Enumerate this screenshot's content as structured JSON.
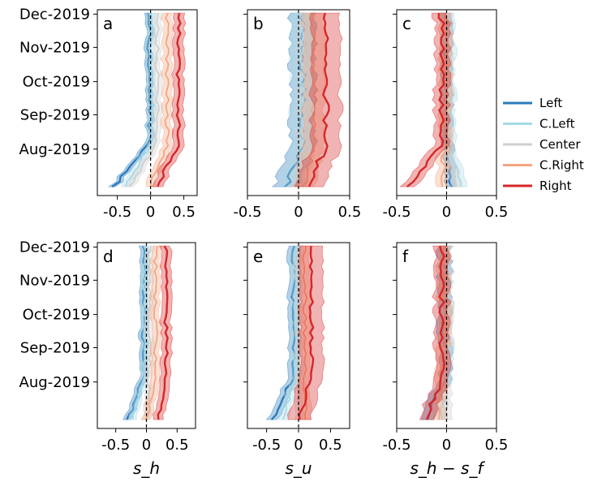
{
  "legend": {
    "position": "right",
    "entries": [
      {
        "label": "Left",
        "color": "#2b7bba"
      },
      {
        "label": "C.Left",
        "color": "#a6d9e6"
      },
      {
        "label": "Center",
        "color": "#cfcfcf"
      },
      {
        "label": "C.Right",
        "color": "#f4a582"
      },
      {
        "label": "Right",
        "color": "#d62728"
      }
    ]
  },
  "chart_data": [
    {
      "type": "line",
      "panel": "a",
      "xlim": [
        -0.8,
        0.7
      ],
      "xticks": [
        "-0.5",
        "0",
        "0.5"
      ],
      "xtick_values": [
        -0.5,
        0,
        0.5
      ],
      "xlabel": "",
      "ylim": [
        "2019-06-20",
        "2019-12-05"
      ],
      "yticks": [
        "Dec-2019",
        "Nov-2019",
        "Oct-2019",
        "Sep-2019",
        "Aug-2019"
      ],
      "ytick_values": [
        "2019-12-01",
        "2019-11-01",
        "2019-10-01",
        "2019-09-01",
        "2019-08-01"
      ],
      "series": [
        {
          "name": "Left",
          "start": -0.55,
          "mean": -0.02,
          "band": 0.05
        },
        {
          "name": "C.Left",
          "start": -0.4,
          "mean": 0.02,
          "band": 0.06
        },
        {
          "name": "Center",
          "start": -0.3,
          "mean": 0.1,
          "band": 0.06
        },
        {
          "name": "C.Right",
          "start": 0.0,
          "mean": 0.25,
          "band": 0.07
        },
        {
          "name": "Right",
          "start": 0.1,
          "mean": 0.42,
          "band": 0.08
        }
      ]
    },
    {
      "type": "line",
      "panel": "b",
      "xlim": [
        -0.5,
        0.5
      ],
      "xticks": [
        "-0.5",
        "0",
        "0.5"
      ],
      "xtick_values": [
        -0.5,
        0,
        0.5
      ],
      "xlabel": "",
      "ylim": [
        "2019-06-20",
        "2019-12-05"
      ],
      "yticks": [],
      "ytick_values": [],
      "series": [
        {
          "name": "Left",
          "start": -0.12,
          "mean": 0.04,
          "band": 0.12
        },
        {
          "name": "C.Left",
          "start": -0.05,
          "mean": 0.03,
          "band": 0.1
        },
        {
          "name": "Center",
          "start": 0.0,
          "mean": 0.06,
          "band": 0.08
        },
        {
          "name": "C.Right",
          "start": 0.05,
          "mean": 0.15,
          "band": 0.1
        },
        {
          "name": "Right",
          "start": 0.1,
          "mean": 0.27,
          "band": 0.14
        }
      ]
    },
    {
      "type": "line",
      "panel": "c",
      "xlim": [
        -0.5,
        0.5
      ],
      "xticks": [
        "-0.5",
        "0",
        "0.5"
      ],
      "xtick_values": [
        -0.5,
        0,
        0.5
      ],
      "xlabel": "",
      "ylim": [
        "2019-06-20",
        "2019-12-05"
      ],
      "yticks": [],
      "ytick_values": [],
      "series": [
        {
          "name": "Left",
          "start": 0.05,
          "mean": 0.0,
          "band": 0.05
        },
        {
          "name": "C.Left",
          "start": 0.15,
          "mean": 0.02,
          "band": 0.06
        },
        {
          "name": "Center",
          "start": 0.1,
          "mean": 0.01,
          "band": 0.05
        },
        {
          "name": "C.Right",
          "start": -0.05,
          "mean": -0.02,
          "band": 0.06
        },
        {
          "name": "Right",
          "start": -0.38,
          "mean": -0.05,
          "band": 0.07
        }
      ]
    },
    {
      "type": "line",
      "panel": "d",
      "xlim": [
        -0.8,
        0.8
      ],
      "xticks": [
        "-0.5",
        "0",
        "0.5"
      ],
      "xtick_values": [
        -0.5,
        0,
        0.5
      ],
      "xlabel": "s_h",
      "ylim": [
        "2019-06-20",
        "2019-12-05"
      ],
      "yticks": [
        "Dec-2019",
        "Nov-2019",
        "Oct-2019",
        "Sep-2019",
        "Aug-2019"
      ],
      "ytick_values": [
        "2019-12-01",
        "2019-11-01",
        "2019-10-01",
        "2019-09-01",
        "2019-08-01"
      ],
      "series": [
        {
          "name": "Left",
          "start": -0.3,
          "mean": -0.05,
          "band": 0.06
        },
        {
          "name": "C.Left",
          "start": -0.25,
          "mean": -0.03,
          "band": 0.06
        },
        {
          "name": "Center",
          "start": 0.0,
          "mean": 0.05,
          "band": 0.06
        },
        {
          "name": "C.Right",
          "start": 0.0,
          "mean": 0.15,
          "band": 0.07
        },
        {
          "name": "Right",
          "start": 0.2,
          "mean": 0.32,
          "band": 0.08
        }
      ]
    },
    {
      "type": "line",
      "panel": "e",
      "xlim": [
        -0.8,
        0.8
      ],
      "xticks": [
        "-0.5",
        "0",
        "0.5"
      ],
      "xtick_values": [
        -0.5,
        0,
        0.5
      ],
      "xlabel": "s_u",
      "ylim": [
        "2019-06-20",
        "2019-12-05"
      ],
      "yticks": [],
      "ytick_values": [],
      "series": [
        {
          "name": "Left",
          "start": -0.4,
          "mean": -0.08,
          "band": 0.08
        },
        {
          "name": "C.Left",
          "start": -0.25,
          "mean": -0.05,
          "band": 0.07
        },
        {
          "name": "Center",
          "start": 0.0,
          "mean": 0.0,
          "band": 0.06
        },
        {
          "name": "C.Right",
          "start": 0.1,
          "mean": 0.1,
          "band": 0.08
        },
        {
          "name": "Right",
          "start": 0.0,
          "mean": 0.2,
          "band": 0.18
        }
      ]
    },
    {
      "type": "line",
      "panel": "f",
      "xlim": [
        -0.5,
        0.5
      ],
      "xticks": [
        "-0.5",
        "0",
        "0.5"
      ],
      "xtick_values": [
        -0.5,
        0,
        0.5
      ],
      "xlabel": "s_h − s_f",
      "ylim": [
        "2019-06-20",
        "2019-12-05"
      ],
      "yticks": [],
      "ytick_values": [],
      "series": [
        {
          "name": "Left",
          "start": -0.2,
          "mean": -0.02,
          "band": 0.06
        },
        {
          "name": "C.Left",
          "start": -0.05,
          "mean": 0.0,
          "band": 0.05
        },
        {
          "name": "Center",
          "start": 0.0,
          "mean": 0.0,
          "band": 0.05
        },
        {
          "name": "C.Right",
          "start": -0.1,
          "mean": -0.03,
          "band": 0.06
        },
        {
          "name": "Right",
          "start": -0.2,
          "mean": -0.05,
          "band": 0.07
        }
      ]
    }
  ]
}
